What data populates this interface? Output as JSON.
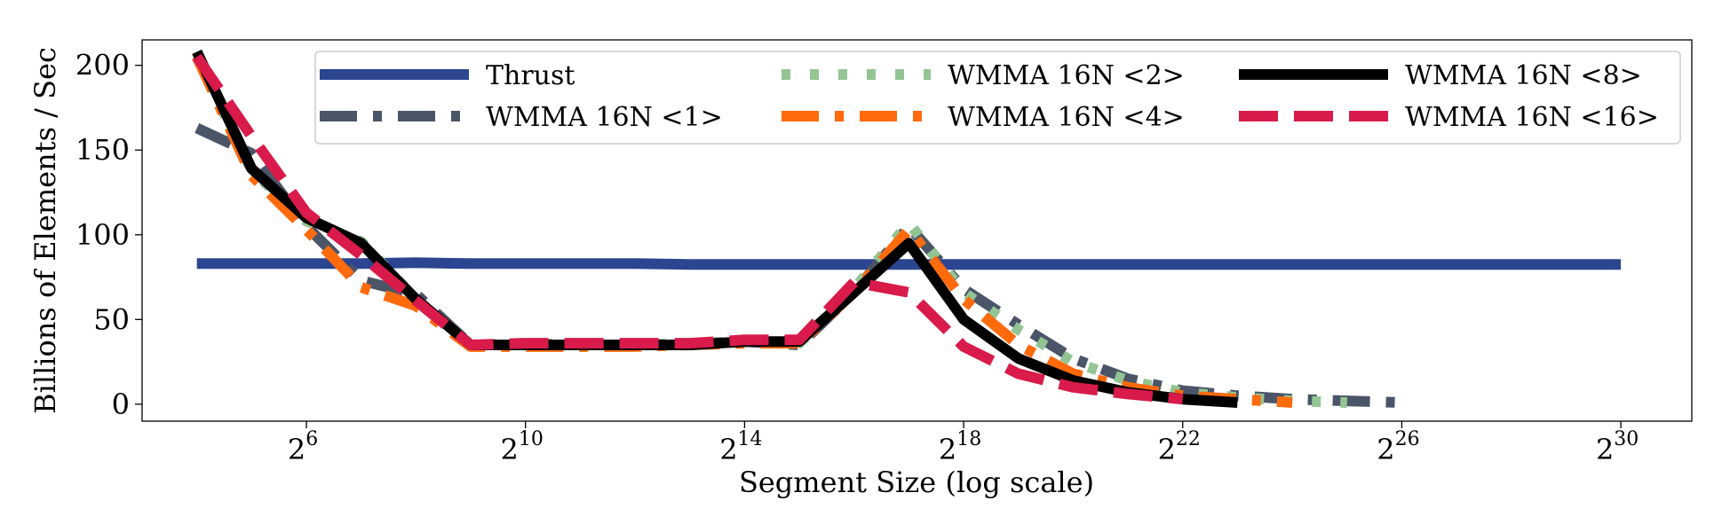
{
  "chart_data": {
    "type": "line",
    "title": "",
    "xlabel": "Segment Size (log scale)",
    "ylabel": "Billions of Elements / Sec",
    "x_scale": "log2",
    "xlim": [
      8,
      2635249152
    ],
    "ylim": [
      -10,
      215
    ],
    "x_ticks": [
      {
        "value": 64,
        "base": "2",
        "exp": "6"
      },
      {
        "value": 1024,
        "base": "2",
        "exp": "10"
      },
      {
        "value": 16384,
        "base": "2",
        "exp": "14"
      },
      {
        "value": 262144,
        "base": "2",
        "exp": "18"
      },
      {
        "value": 4194304,
        "base": "2",
        "exp": "22"
      },
      {
        "value": 67108864,
        "base": "2",
        "exp": "26"
      },
      {
        "value": 1073741824,
        "base": "2",
        "exp": "30"
      }
    ],
    "y_ticks": [
      0,
      50,
      100,
      150,
      200
    ],
    "grid": false,
    "legend_position": "top",
    "series": [
      {
        "name": "Thrust",
        "color": "#2b4591",
        "style": "solid",
        "x": [
          16,
          32,
          64,
          128,
          256,
          512,
          1024,
          2048,
          4096,
          8192,
          16384,
          32768,
          65536,
          131072,
          262144,
          524288,
          1048576,
          2097152,
          4194304,
          8388608,
          16777216,
          33554432,
          67108864,
          134217728,
          268435456,
          536870912,
          1073741824
        ],
        "y": [
          83,
          83,
          83,
          83,
          83.5,
          83,
          83,
          83,
          83,
          82.5,
          82.5,
          82.5,
          82.5,
          82.5,
          82.5,
          82.5,
          82.5,
          82.5,
          82.5,
          82.5,
          82.5,
          82.5,
          82.5,
          82.5,
          82.5,
          82.5,
          82.5
        ]
      },
      {
        "name": "WMMA 16N <1>",
        "color": "#4a5568",
        "style": "dashdot",
        "x": [
          16,
          32,
          64,
          128,
          256,
          512,
          1024,
          2048,
          4096,
          8192,
          16384,
          32768,
          65536,
          131072,
          262144,
          524288,
          1048576,
          2097152,
          4194304,
          8388608,
          16777216,
          33554432,
          67108864
        ],
        "y": [
          163,
          148,
          105,
          73,
          65,
          35,
          35,
          35,
          35,
          35,
          37,
          35,
          66,
          105,
          68,
          47,
          27,
          15,
          8,
          5,
          3,
          2,
          1
        ]
      },
      {
        "name": "WMMA 16N <2>",
        "color": "#93c493",
        "style": "dotted",
        "x": [
          16,
          32,
          64,
          128,
          256,
          512,
          1024,
          2048,
          4096,
          8192,
          16384,
          32768,
          65536,
          131072,
          262144,
          524288,
          1048576,
          2097152,
          4194304,
          8388608,
          16777216,
          33554432
        ],
        "y": [
          205,
          138,
          108,
          96,
          62,
          35,
          36,
          35,
          35,
          36,
          37,
          36,
          68,
          107,
          66,
          44,
          25,
          14,
          7,
          4,
          2,
          1
        ]
      },
      {
        "name": "WMMA 16N <4>",
        "color": "#ff6a0d",
        "style": "dashdot",
        "x": [
          16,
          32,
          64,
          128,
          256,
          512,
          1024,
          2048,
          4096,
          8192,
          16384,
          32768,
          65536,
          131072,
          262144,
          524288,
          1048576,
          2097152,
          4194304,
          8388608,
          16777216
        ],
        "y": [
          205,
          135,
          103,
          69,
          58,
          34,
          34,
          34,
          34,
          35,
          36,
          36,
          66,
          103,
          62,
          35,
          18,
          10,
          5,
          3,
          1
        ]
      },
      {
        "name": "WMMA 16N <8>",
        "color": "#000000",
        "style": "solid",
        "x": [
          16,
          32,
          64,
          128,
          256,
          512,
          1024,
          2048,
          4096,
          8192,
          16384,
          32768,
          65536,
          131072,
          262144,
          524288,
          1048576,
          2097152,
          4194304,
          8388608
        ],
        "y": [
          208,
          139,
          110,
          95,
          62,
          35,
          35,
          35,
          35,
          35,
          37,
          37,
          66,
          95,
          50,
          27,
          14,
          7,
          3,
          1
        ]
      },
      {
        "name": "WMMA 16N <16>",
        "color": "#d81b4a",
        "style": "dashed",
        "x": [
          16,
          32,
          64,
          128,
          256,
          512,
          1024,
          2048,
          4096,
          8192,
          16384,
          32768,
          65536,
          131072,
          262144,
          524288,
          1048576,
          2097152,
          4194304
        ],
        "y": [
          205,
          158,
          113,
          88,
          61,
          35,
          36,
          36,
          36,
          36,
          38,
          38,
          72,
          66,
          34,
          18,
          10,
          6,
          3
        ]
      }
    ]
  }
}
